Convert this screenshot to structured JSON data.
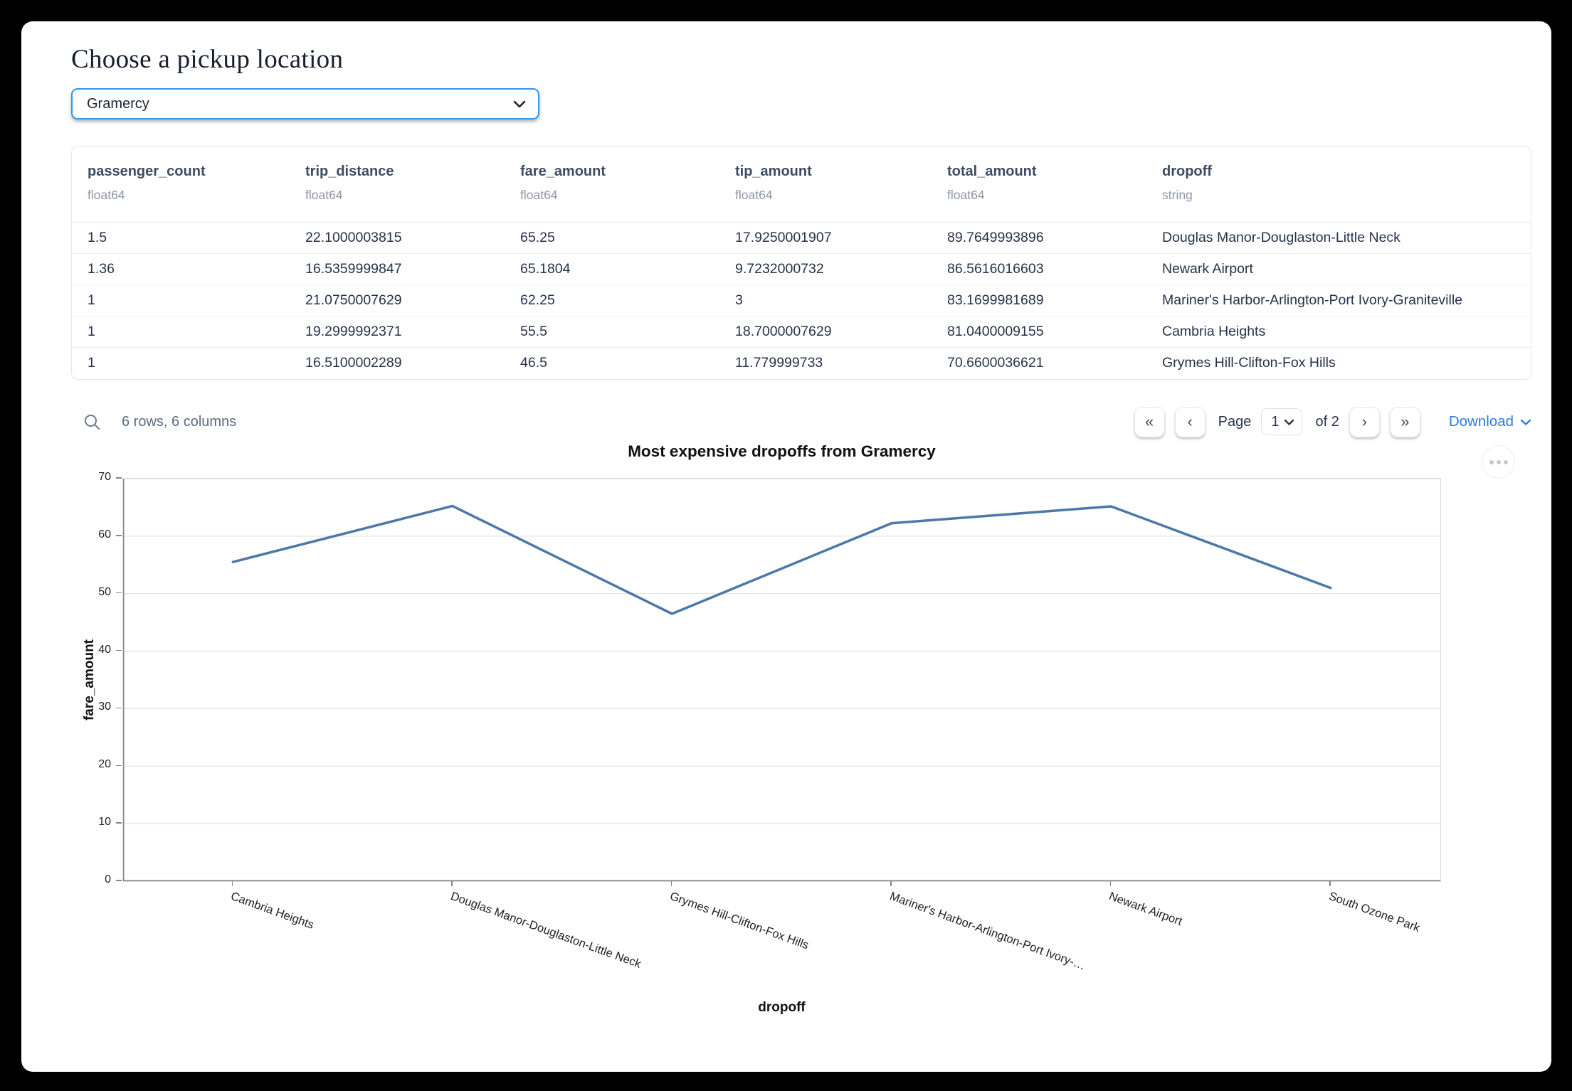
{
  "page": {
    "title": "Choose a pickup location"
  },
  "pickup_select": {
    "value": "Gramercy"
  },
  "table": {
    "columns": [
      {
        "name": "passenger_count",
        "dtype": "float64"
      },
      {
        "name": "trip_distance",
        "dtype": "float64"
      },
      {
        "name": "fare_amount",
        "dtype": "float64"
      },
      {
        "name": "tip_amount",
        "dtype": "float64"
      },
      {
        "name": "total_amount",
        "dtype": "float64"
      },
      {
        "name": "dropoff",
        "dtype": "string"
      }
    ],
    "rows": [
      [
        "1.5",
        "22.1000003815",
        "65.25",
        "17.9250001907",
        "89.7649993896",
        "Douglas Manor-Douglaston-Little Neck"
      ],
      [
        "1.36",
        "16.5359999847",
        "65.1804",
        "9.7232000732",
        "86.5616016603",
        "Newark Airport"
      ],
      [
        "1",
        "21.0750007629",
        "62.25",
        "3",
        "83.1699981689",
        "Mariner's Harbor-Arlington-Port Ivory-Graniteville"
      ],
      [
        "1",
        "19.2999992371",
        "55.5",
        "18.7000007629",
        "81.0400009155",
        "Cambria Heights"
      ],
      [
        "1",
        "16.5100002289",
        "46.5",
        "11.779999733",
        "70.6600036621",
        "Grymes Hill-Clifton-Fox Hills"
      ]
    ],
    "summary": "6 rows, 6 columns",
    "pagination": {
      "first": "«",
      "prev": "‹",
      "page_label": "Page",
      "page_value": "1",
      "of_label": "of 2",
      "next": "›",
      "last": "»"
    },
    "download_label": "Download"
  },
  "chart_data": {
    "type": "line",
    "title": "Most expensive dropoffs from Gramercy",
    "xlabel": "dropoff",
    "ylabel": "fare_amount",
    "categories": [
      "Cambria Heights",
      "Douglas Manor-Douglaston-Little Neck",
      "Grymes Hill-Clifton-Fox Hills",
      "Mariner's Harbor-Arlington-Port Ivory-…",
      "Newark Airport",
      "South Ozone Park"
    ],
    "values": [
      55.5,
      65.25,
      46.5,
      62.25,
      65.1804,
      51
    ],
    "ylim": [
      0,
      70
    ],
    "ytick_step": 10,
    "grid": true,
    "legend": false,
    "line_color": "#4c78a8"
  },
  "colors": {
    "accent_blue": "#2e9af2",
    "link_blue": "#2a7de1",
    "line_blue": "#4c78a8",
    "header_text": "#3d4c63"
  }
}
